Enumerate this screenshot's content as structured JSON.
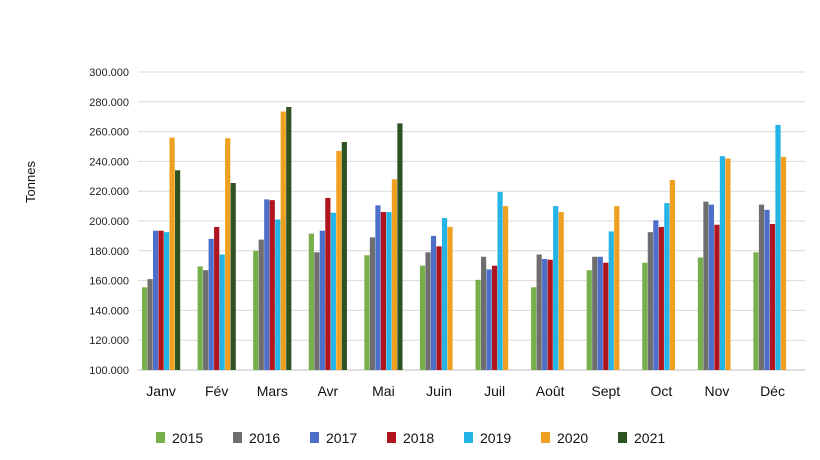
{
  "chart_data": {
    "type": "bar",
    "ylabel": "Tonnes",
    "ylim": [
      100000,
      300000
    ],
    "yticks": [
      "100.000",
      "120.000",
      "140.000",
      "160.000",
      "180.000",
      "200.000",
      "220.000",
      "240.000",
      "260.000",
      "280.000",
      "300.000"
    ],
    "categories": [
      "Janv",
      "Fév",
      "Mars",
      "Avr",
      "Mai",
      "Juin",
      "Juil",
      "Août",
      "Sept",
      "Oct",
      "Nov",
      "Déc"
    ],
    "grid": true,
    "legend_position": "bottom",
    "series": [
      {
        "name": "2015",
        "color": "#77b04a",
        "values": [
          155500,
          169500,
          180000,
          191500,
          177000,
          170000,
          160500,
          155500,
          167000,
          172000,
          175500,
          179000
        ]
      },
      {
        "name": "2016",
        "color": "#6e6e6e",
        "values": [
          161000,
          167000,
          187500,
          179000,
          189000,
          179000,
          176000,
          177500,
          176000,
          192500,
          213000,
          211000
        ]
      },
      {
        "name": "2017",
        "color": "#4d6fca",
        "values": [
          193500,
          188000,
          214500,
          193500,
          210500,
          190000,
          167500,
          174500,
          176000,
          200500,
          211000,
          207500
        ]
      },
      {
        "name": "2018",
        "color": "#b0141c",
        "values": [
          193500,
          196000,
          214000,
          215500,
          206000,
          183000,
          170000,
          174000,
          172000,
          196000,
          197500,
          198000
        ]
      },
      {
        "name": "2019",
        "color": "#25b4e6",
        "values": [
          192500,
          177500,
          201000,
          205500,
          206000,
          202000,
          219500,
          210000,
          193000,
          212000,
          243500,
          264500
        ]
      },
      {
        "name": "2020",
        "color": "#f0a020",
        "values": [
          256000,
          255500,
          273500,
          247000,
          228000,
          196000,
          210000,
          206000,
          210000,
          227500,
          242000,
          243000
        ]
      },
      {
        "name": "2021",
        "color": "#2f5223",
        "values": [
          234000,
          225500,
          276500,
          253000,
          265500,
          null,
          null,
          null,
          null,
          null,
          null,
          null
        ]
      }
    ]
  }
}
